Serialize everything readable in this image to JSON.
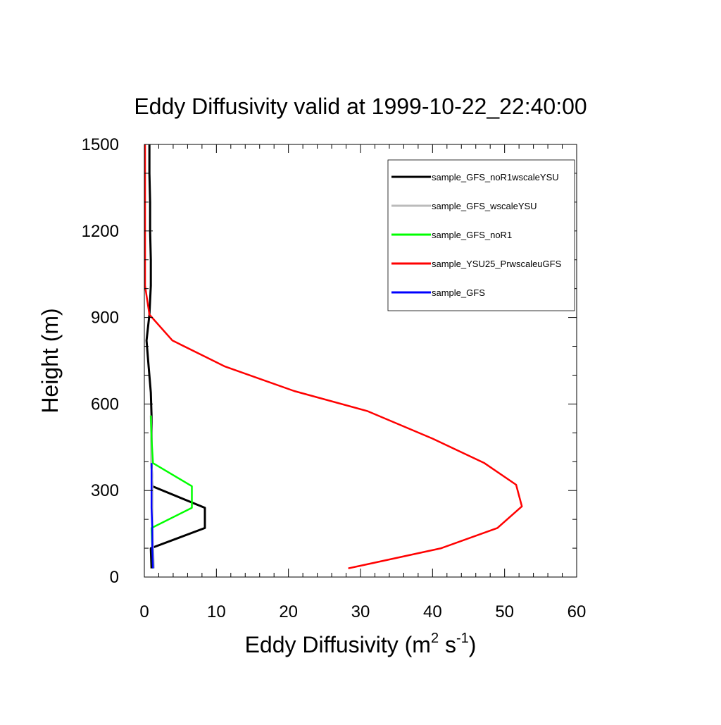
{
  "chart_data": {
    "type": "line",
    "title": "Eddy Diffusivity valid at 1999-10-22_22:40:00",
    "xlabel": "Eddy Diffusivity (m",
    "xlabel_sup1": "2",
    "xlabel_mid": " s",
    "xlabel_sup2": "-1",
    "xlabel_end": ")",
    "ylabel": "Height (m)",
    "xlim": [
      0,
      60
    ],
    "ylim": [
      0,
      1500
    ],
    "xticks": [
      0,
      10,
      20,
      30,
      40,
      50,
      60
    ],
    "yticks": [
      0,
      300,
      600,
      900,
      1200,
      1500
    ],
    "xtick_labels": [
      "0",
      "10",
      "20",
      "30",
      "40",
      "50",
      "60"
    ],
    "ytick_labels": [
      "0",
      "300",
      "600",
      "900",
      "1200",
      "1500"
    ],
    "x_minor_step": 2,
    "y_minor_step": 100,
    "grid": false,
    "legend_position": "top-right",
    "series": [
      {
        "name": "sample_GFS_noR1wscaleYSU",
        "color": "#000000",
        "width": 3,
        "points": [
          [
            1.0,
            30
          ],
          [
            0.9,
            100
          ],
          [
            8.4,
            170
          ],
          [
            8.4,
            240
          ],
          [
            1.1,
            315
          ],
          [
            1.0,
            395
          ],
          [
            1.0,
            480
          ],
          [
            1.0,
            560
          ],
          [
            0.9,
            640
          ],
          [
            0.6,
            730
          ],
          [
            0.3,
            820
          ],
          [
            0.7,
            910
          ],
          [
            0.9,
            1010
          ],
          [
            0.9,
            1100
          ],
          [
            0.8,
            1200
          ],
          [
            0.8,
            1300
          ],
          [
            0.7,
            1400
          ],
          [
            0.7,
            1500
          ]
        ]
      },
      {
        "name": "sample_GFS_wscaleYSU",
        "color": "#bbbbbb",
        "width": 3,
        "points": [
          [
            1.3,
            30
          ],
          [
            1.2,
            100
          ],
          [
            1.1,
            170
          ],
          [
            1.1,
            240
          ],
          [
            1.1,
            315
          ],
          [
            1.0,
            395
          ],
          [
            1.0,
            480
          ],
          [
            0.9,
            560
          ]
        ]
      },
      {
        "name": "sample_GFS_noR1",
        "color": "#00ff00",
        "width": 2.5,
        "points": [
          [
            1.2,
            30
          ],
          [
            1.1,
            100
          ],
          [
            1.0,
            170
          ],
          [
            6.6,
            240
          ],
          [
            6.6,
            315
          ],
          [
            1.2,
            395
          ],
          [
            1.0,
            480
          ],
          [
            0.9,
            560
          ]
        ]
      },
      {
        "name": "sample_YSU25_PrwscaleuGFS",
        "color": "#ff0000",
        "width": 2.5,
        "points": [
          [
            28.3,
            30
          ],
          [
            41.2,
            100
          ],
          [
            49.0,
            170
          ],
          [
            52.4,
            245
          ],
          [
            51.6,
            320
          ],
          [
            47.2,
            395
          ],
          [
            40.0,
            480
          ],
          [
            31.0,
            575
          ],
          [
            20.8,
            645
          ],
          [
            11.2,
            730
          ],
          [
            3.9,
            820
          ],
          [
            0.7,
            910
          ],
          [
            0.1,
            1010
          ],
          [
            0.1,
            1100
          ],
          [
            0.1,
            1200
          ],
          [
            0.1,
            1300
          ],
          [
            0.1,
            1400
          ],
          [
            0.1,
            1500
          ]
        ]
      },
      {
        "name": "sample_GFS",
        "color": "#0000ff",
        "width": 2.5,
        "points": [
          [
            1.2,
            30
          ],
          [
            1.1,
            100
          ],
          [
            1.1,
            170
          ],
          [
            1.0,
            240
          ],
          [
            1.0,
            315
          ],
          [
            1.0,
            395
          ]
        ]
      }
    ]
  }
}
